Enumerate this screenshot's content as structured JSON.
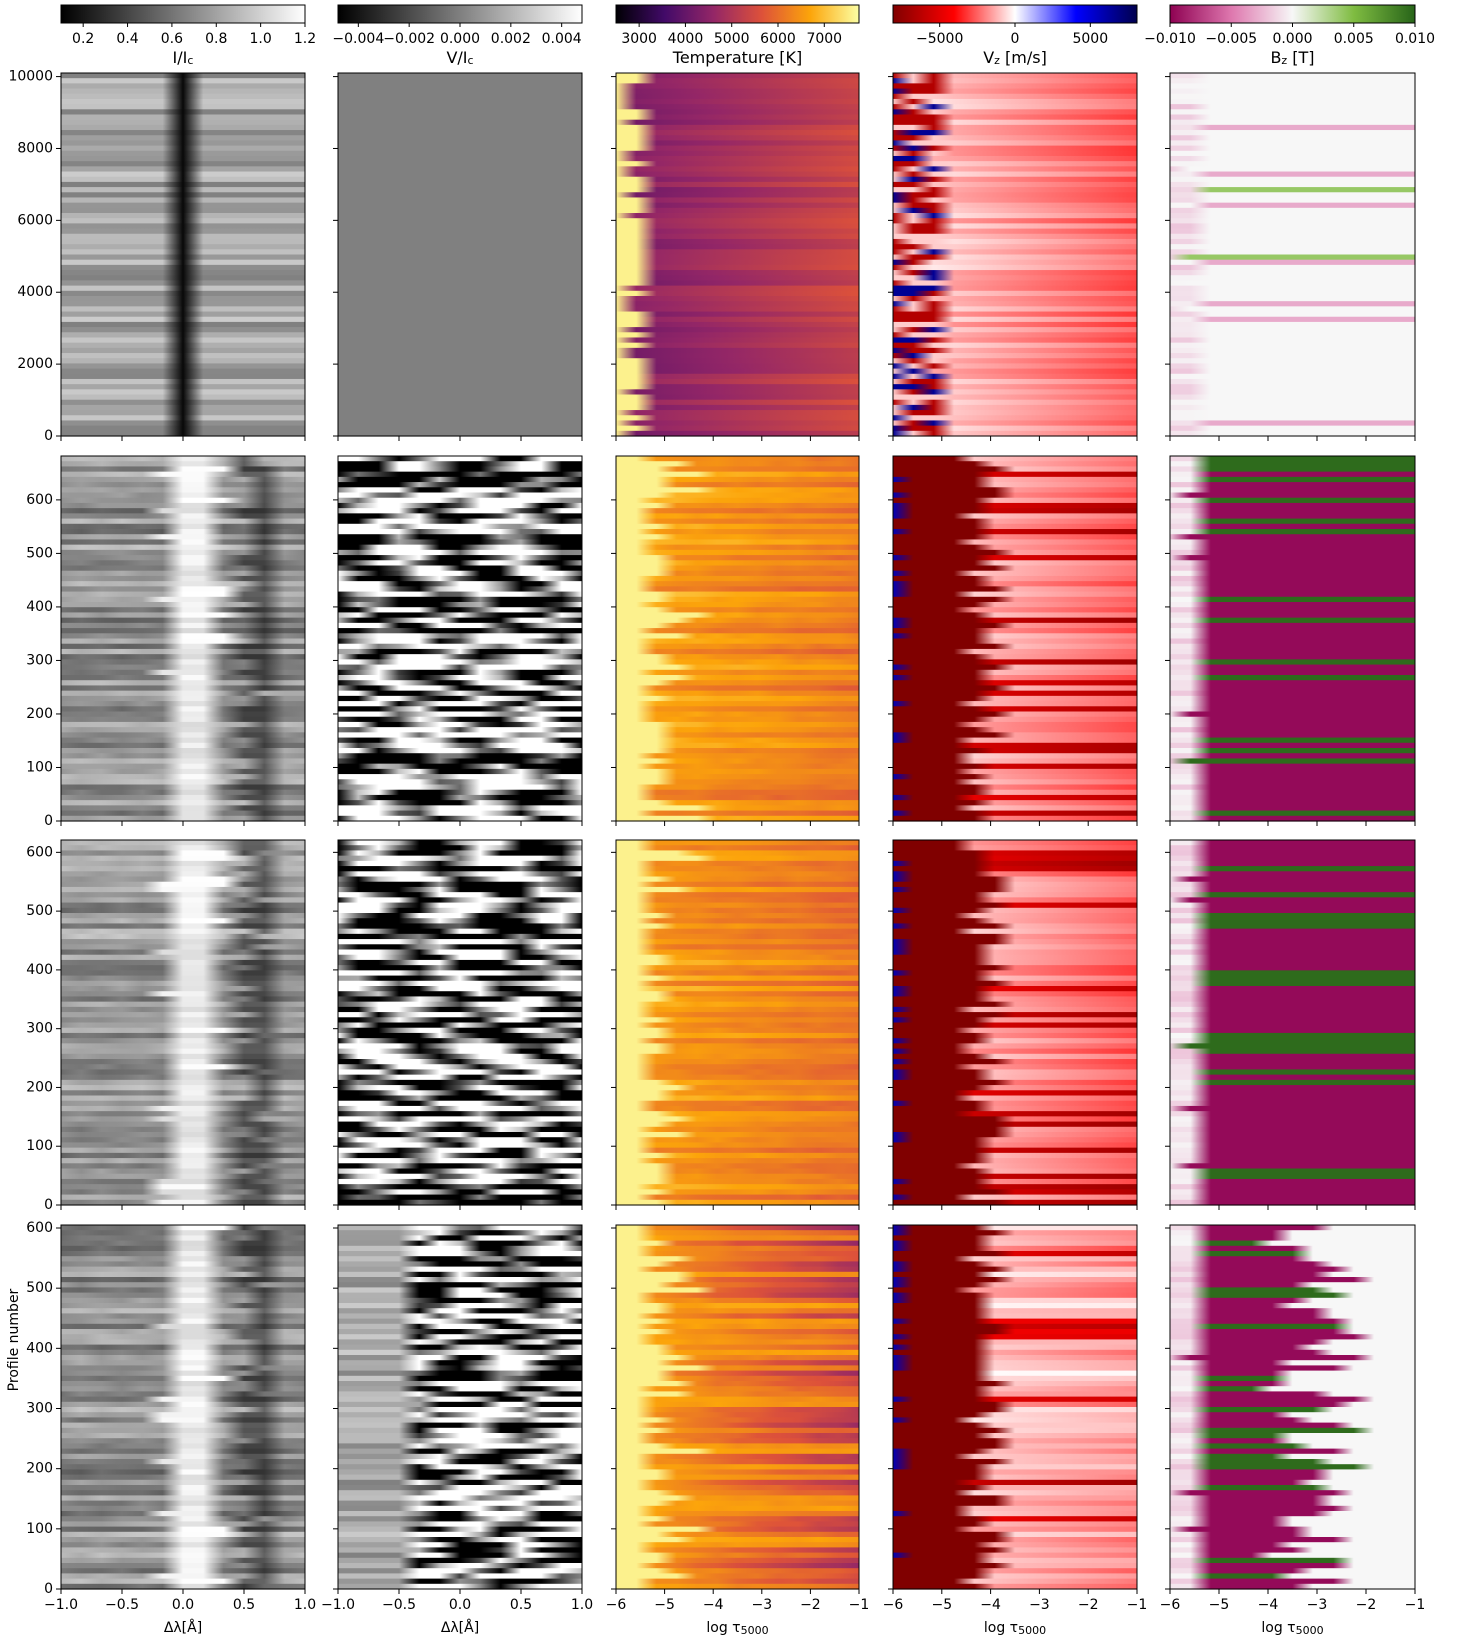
{
  "chart_data": {
    "type": "heatmap",
    "ylabel": "Profile number",
    "colorbars": [
      {
        "title": [
          {
            "text": "I/I"
          },
          {
            "text": "c",
            "sub": true
          }
        ],
        "lim": [
          0.1,
          1.2
        ],
        "colormap": [
          "#000000",
          "#ffffff"
        ],
        "ticks": [
          0.2,
          0.4,
          0.6,
          0.8,
          {
            "value": 1,
            "label": "1.0"
          },
          1.2
        ]
      },
      {
        "title": [
          {
            "text": "V/I"
          },
          {
            "text": "c",
            "sub": true
          }
        ],
        "lim": [
          -0.0048,
          0.0048
        ],
        "colormap": [
          "#000000",
          "#ffffff"
        ],
        "ticks": [
          {
            "value": -0.004,
            "label": "−0.004"
          },
          {
            "value": -0.002,
            "label": "−0.002"
          },
          {
            "value": 0,
            "label": "0.000"
          },
          {
            "value": 0.002,
            "label": "0.002"
          },
          {
            "value": 0.004,
            "label": "0.004"
          }
        ]
      },
      {
        "title": [
          {
            "text": "Temperature [K]"
          }
        ],
        "lim": [
          2500,
          7750
        ],
        "colormap": [
          "#000004",
          "#420a68",
          "#932667",
          "#dd513a",
          "#fca50a",
          "#fcffa4"
        ],
        "ticks": [
          3000,
          4000,
          5000,
          6000,
          7000
        ]
      },
      {
        "title": [
          {
            "text": "V"
          },
          {
            "text": "z",
            "sub": true
          },
          {
            "text": " [m/s]"
          }
        ],
        "lim": [
          -8100,
          8100
        ],
        "colormap": [
          "#800000",
          "#ff0000",
          "#ffffff",
          "#0000ff",
          "#00004d"
        ],
        "ticks": [
          {
            "value": -5000,
            "label": "−5000"
          },
          0,
          5000
        ]
      },
      {
        "title": [
          {
            "text": "B"
          },
          {
            "text": "z",
            "sub": true
          },
          {
            "text": " [T]"
          }
        ],
        "lim": [
          -0.01,
          0.01
        ],
        "colormap": [
          "#8e0152",
          "#de77ae",
          "#f7f7f7",
          "#7fbc41",
          "#276419"
        ],
        "ticks": [
          {
            "value": -0.01,
            "label": "−0.010"
          },
          {
            "value": -0.005,
            "label": "−0.005"
          },
          {
            "value": 0,
            "label": "0.000"
          },
          {
            "value": 0.005,
            "label": "0.005"
          },
          {
            "value": 0.01,
            "label": "0.010"
          }
        ]
      }
    ],
    "columns": [
      {
        "xlabel": [
          {
            "text": "Δλ[Å]"
          }
        ],
        "xlim": [
          -1,
          1
        ],
        "xticks": [
          {
            "value": -1,
            "label": "−1.0"
          },
          {
            "value": -0.5,
            "label": "−0.5"
          },
          {
            "value": 0,
            "label": "0.0"
          },
          {
            "value": 0.5,
            "label": "0.5"
          },
          {
            "value": 1,
            "label": "1.0"
          }
        ]
      },
      {
        "xlabel": [
          {
            "text": "Δλ[Å]"
          }
        ],
        "xlim": [
          -1,
          1
        ],
        "xticks": [
          {
            "value": -1,
            "label": "−1.0"
          },
          {
            "value": -0.5,
            "label": "−0.5"
          },
          {
            "value": 0,
            "label": "0.0"
          },
          {
            "value": 0.5,
            "label": "0.5"
          },
          {
            "value": 1,
            "label": "1.0"
          }
        ]
      },
      {
        "xlabel": [
          {
            "text": "log τ"
          },
          {
            "text": "5000",
            "sub": true
          }
        ],
        "xlim": [
          -6,
          -1
        ],
        "xticks": [
          {
            "value": -6,
            "label": "−6"
          },
          {
            "value": -5,
            "label": "−5"
          },
          {
            "value": -4,
            "label": "−4"
          },
          {
            "value": -3,
            "label": "−3"
          },
          {
            "value": -2,
            "label": "−2"
          },
          {
            "value": -1,
            "label": "−1"
          }
        ]
      },
      {
        "xlabel": [
          {
            "text": "log τ"
          },
          {
            "text": "5000",
            "sub": true
          }
        ],
        "xlim": [
          -6,
          -1
        ],
        "xticks": [
          {
            "value": -6,
            "label": "−6"
          },
          {
            "value": -5,
            "label": "−5"
          },
          {
            "value": -4,
            "label": "−4"
          },
          {
            "value": -3,
            "label": "−3"
          },
          {
            "value": -2,
            "label": "−2"
          },
          {
            "value": -1,
            "label": "−1"
          }
        ]
      },
      {
        "xlabel": [
          {
            "text": "log τ"
          },
          {
            "text": "5000",
            "sub": true
          }
        ],
        "xlim": [
          -6,
          -1
        ],
        "xticks": [
          {
            "value": -6,
            "label": "−6"
          },
          {
            "value": -5,
            "label": "−5"
          },
          {
            "value": -4,
            "label": "−4"
          },
          {
            "value": -3,
            "label": "−3"
          },
          {
            "value": -2,
            "label": "−2"
          },
          {
            "value": -1,
            "label": "−1"
          }
        ]
      }
    ],
    "rows": [
      {
        "ylim": [
          0,
          10100
        ],
        "yticks": [
          0,
          2000,
          4000,
          6000,
          8000,
          10000
        ]
      },
      {
        "ylim": [
          0,
          682
        ],
        "yticks": [
          0,
          100,
          200,
          300,
          400,
          500,
          600
        ]
      },
      {
        "ylim": [
          0,
          621
        ],
        "yticks": [
          0,
          100,
          200,
          300,
          400,
          500,
          600
        ]
      },
      {
        "ylim": [
          0,
          605
        ],
        "yticks": [
          0,
          100,
          200,
          300,
          400,
          500,
          600
        ]
      }
    ]
  }
}
